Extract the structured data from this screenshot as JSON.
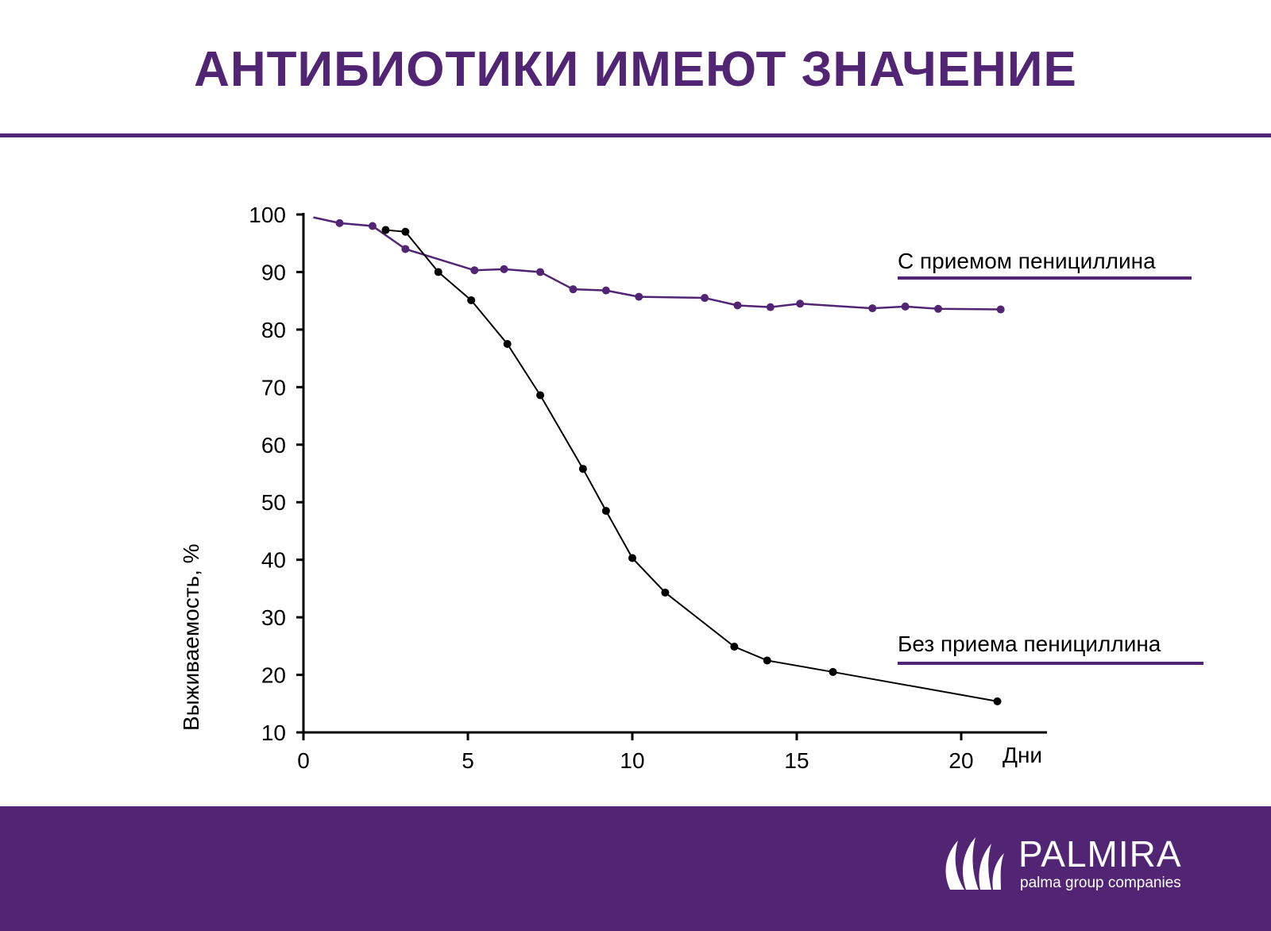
{
  "slide": {
    "title": "АНТИБИОТИКИ ИМЕЮТ ЗНАЧЕНИЕ",
    "accent_color": "#522574",
    "footer_color": "#522574"
  },
  "logo": {
    "name": "PALMIRA",
    "tagline": "palma group companies",
    "icon": "palm-leaf-icon"
  },
  "chart_data": {
    "type": "line",
    "xlabel": "Дни",
    "ylabel": "Выживаемость, %",
    "xlim": [
      0,
      22
    ],
    "ylim": [
      10,
      100
    ],
    "xticks": [
      0,
      5,
      10,
      15,
      20
    ],
    "yticks": [
      10,
      20,
      30,
      40,
      50,
      60,
      70,
      80,
      90,
      100
    ],
    "grid": false,
    "series": [
      {
        "name": "С приемом пенициллина",
        "color": "#522574",
        "start": [
          0.3,
          99.5
        ],
        "x": [
          1.1,
          2.1,
          3.1,
          5.2,
          6.1,
          7.2,
          8.2,
          9.2,
          10.2,
          12.2,
          13.2,
          14.2,
          15.1,
          17.3,
          18.3,
          19.3,
          21.2
        ],
        "y": [
          98.5,
          98.0,
          94.0,
          90.3,
          90.5,
          90.0,
          87.0,
          86.8,
          85.7,
          85.5,
          84.2,
          83.9,
          84.5,
          83.7,
          84.0,
          83.6,
          83.5
        ]
      },
      {
        "name": "Без приема пенициллина",
        "color": "#000000",
        "x": [
          2.5,
          3.1,
          4.1,
          5.1,
          6.2,
          7.2,
          8.5,
          9.2,
          10.0,
          11.0,
          13.1,
          14.1,
          16.1,
          21.1
        ],
        "y": [
          97.3,
          97.0,
          90.0,
          85.1,
          77.5,
          68.6,
          55.8,
          48.5,
          40.3,
          34.3,
          24.9,
          22.5,
          20.5,
          15.4
        ]
      }
    ]
  }
}
